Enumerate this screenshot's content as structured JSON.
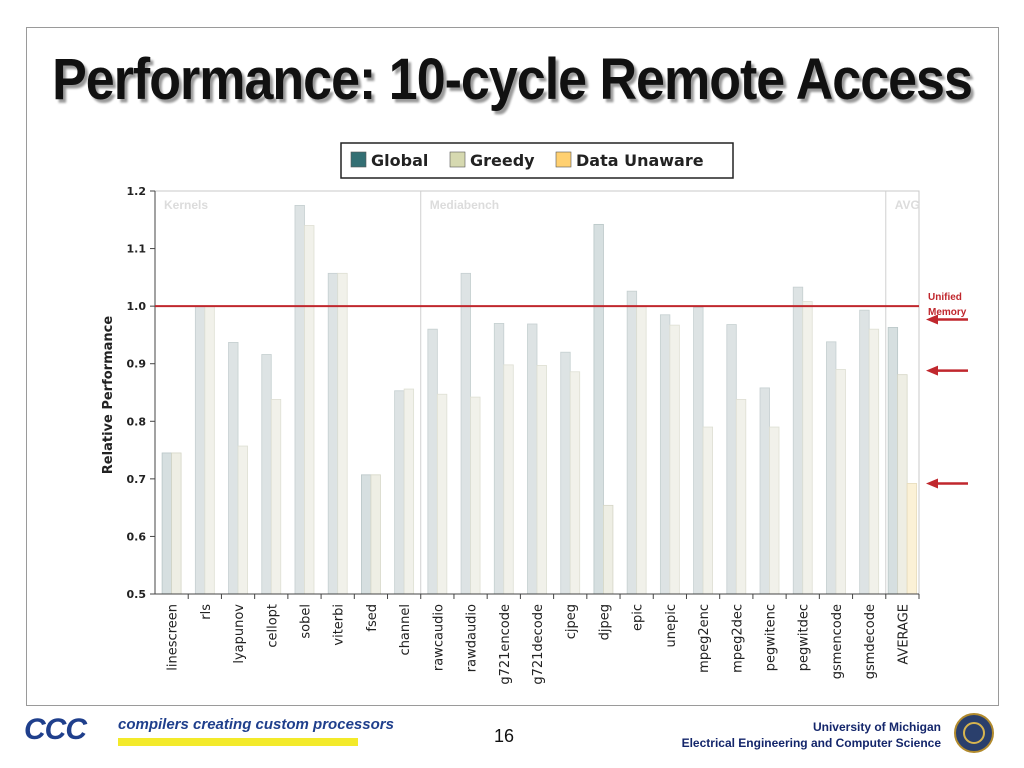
{
  "slide": {
    "title": "Performance: 10-cycle Remote Access",
    "page_number": "16",
    "footer_logo": "CCC",
    "footer_tagline": "compilers creating custom processors",
    "footer_university": "University of Michigan",
    "footer_department": "Electrical Engineering and Computer Science"
  },
  "chart_data": {
    "type": "bar",
    "title": "",
    "xlabel": "",
    "ylabel": "Relative Performance",
    "ylim": [
      0.5,
      1.2
    ],
    "yticks": [
      "0.5",
      "0.6",
      "0.7",
      "0.8",
      "0.9",
      "1.0",
      "1.1",
      "1.2"
    ],
    "legend_position": "top-center",
    "categories": [
      "linescreen",
      "rls",
      "lyapunov",
      "cellopt",
      "sobel",
      "viterbi",
      "fsed",
      "channel",
      "rawcaudio",
      "rawdaudio",
      "g721encode",
      "g721decode",
      "cjpeg",
      "djpeg",
      "epic",
      "unepic",
      "mpeg2enc",
      "mpeg2dec",
      "pegwitenc",
      "pegwitdec",
      "gsmencode",
      "gsmdecode",
      "AVERAGE"
    ],
    "sections": [
      {
        "label": "Kernels",
        "start_index": 0
      },
      {
        "label": "Mediabench",
        "start_index": 8
      },
      {
        "label": "AVG",
        "start_index": 22
      }
    ],
    "series": [
      {
        "name": "Global",
        "color": "#336f73",
        "values": [
          0.745,
          1.0,
          0.937,
          0.916,
          1.175,
          1.057,
          0.707,
          0.853,
          0.96,
          1.057,
          0.97,
          0.969,
          0.92,
          1.142,
          1.026,
          0.985,
          0.998,
          0.968,
          0.858,
          1.033,
          0.938,
          0.993,
          0.963
        ]
      },
      {
        "name": "Greedy",
        "color": "#d6d9b0",
        "values": [
          0.745,
          1.0,
          0.757,
          0.838,
          1.14,
          1.057,
          0.707,
          0.856,
          0.847,
          0.842,
          0.898,
          0.897,
          0.886,
          0.654,
          1.0,
          0.967,
          0.79,
          0.838,
          0.79,
          1.008,
          0.89,
          0.96,
          0.881
        ]
      },
      {
        "name": "Data Unaware",
        "color": "#ffd070",
        "values": [
          null,
          null,
          null,
          null,
          null,
          null,
          null,
          null,
          null,
          null,
          null,
          null,
          null,
          null,
          null,
          null,
          null,
          null,
          null,
          null,
          null,
          null,
          0.692
        ]
      }
    ],
    "reference_line": {
      "value": 1.0,
      "label_line1": "Unified",
      "label_line2": "Memory",
      "color": "#c0272d"
    }
  }
}
